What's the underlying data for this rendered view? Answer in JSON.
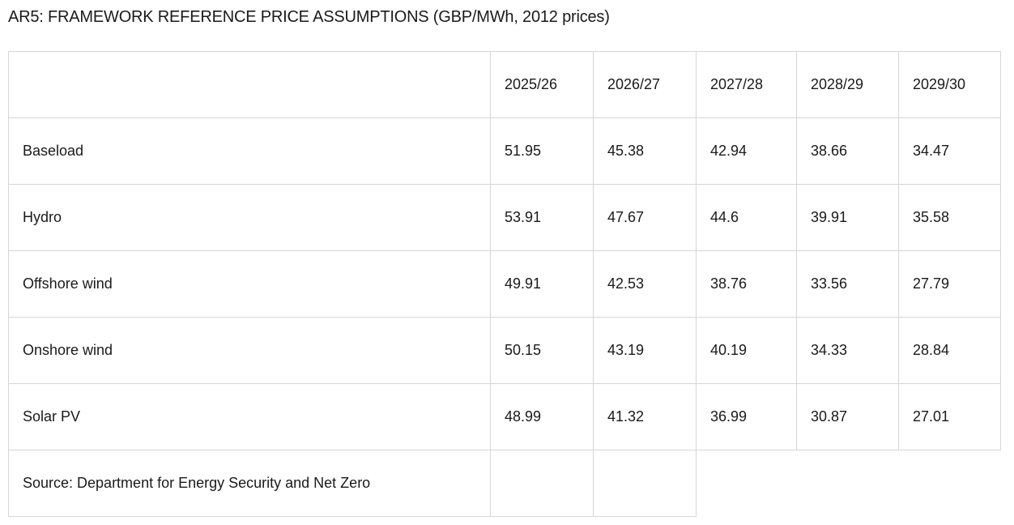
{
  "title": "AR5: FRAMEWORK REFERENCE PRICE ASSUMPTIONS (GBP/MWh, 2012 prices)",
  "table": {
    "corner": "",
    "columns": [
      "2025/26",
      "2026/27",
      "2027/28",
      "2028/29",
      "2029/30"
    ],
    "rows": [
      {
        "label": "Baseload",
        "values": [
          "51.95",
          "45.38",
          "42.94",
          "38.66",
          "34.47"
        ]
      },
      {
        "label": "Hydro",
        "values": [
          "53.91",
          "47.67",
          "44.6",
          "39.91",
          "35.58"
        ]
      },
      {
        "label": "Offshore wind",
        "values": [
          "49.91",
          "42.53",
          "38.76",
          "33.56",
          "27.79"
        ]
      },
      {
        "label": "Onshore wind",
        "values": [
          "50.15",
          "43.19",
          "40.19",
          "34.33",
          "28.84"
        ]
      },
      {
        "label": "Solar PV",
        "values": [
          "48.99",
          "41.32",
          "36.99",
          "30.87",
          "27.01"
        ]
      }
    ],
    "source": "Source: Department for Energy Security and Net Zero"
  }
}
